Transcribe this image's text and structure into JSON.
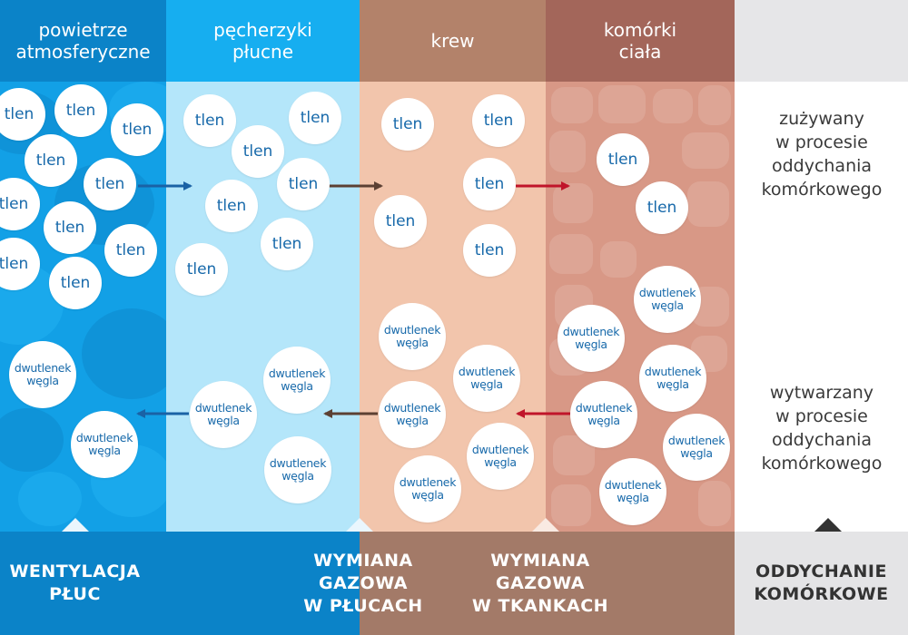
{
  "colors": {
    "atmosphere_header": "#0b83c8",
    "atmosphere_body": "#12a0e6",
    "alveoli_header": "#16aef0",
    "alveoli_body": "#b4e6fa",
    "blood_header": "#b3826a",
    "blood_body": "#f2c5ac",
    "cells_header": "#a3665a",
    "cells_body": "#d89886",
    "side_header": "#e6e6e8",
    "footer_blue": "#0b83c8",
    "footer_brown": "#a37a68",
    "footer_grey": "#e4e4e6",
    "arrow_blue": "#1a62a5",
    "arrow_brown": "#5c4033",
    "arrow_red": "#c0152a",
    "molecule_text": "#1769aa"
  },
  "headers": {
    "atmosphere": "powietrze\natmosferyczne",
    "alveoli": "pęcherzyki\npłucne",
    "blood": "krew",
    "cells": "komórki\nciała"
  },
  "molecules": {
    "oxygen": "tlen",
    "carbon_dioxide": "dwutlenek\nwęgla"
  },
  "side_labels": {
    "consumed": "zużywany\nw procesie\noddychania\nkomórkowego",
    "produced": "wytwarzany\nw procesie\noddychania\nkomórkowego"
  },
  "footer": {
    "ventilation": "WENTYLACJA\nPŁUC",
    "lung_exchange": "WYMIANA\nGAZOWA\nW PŁUCACH",
    "tissue_exchange": "WYMIANA\nGAZOWA\nW TKANKACH",
    "cellular_respiration": "ODDYCHANIE\nKOMÓRKOWE"
  }
}
